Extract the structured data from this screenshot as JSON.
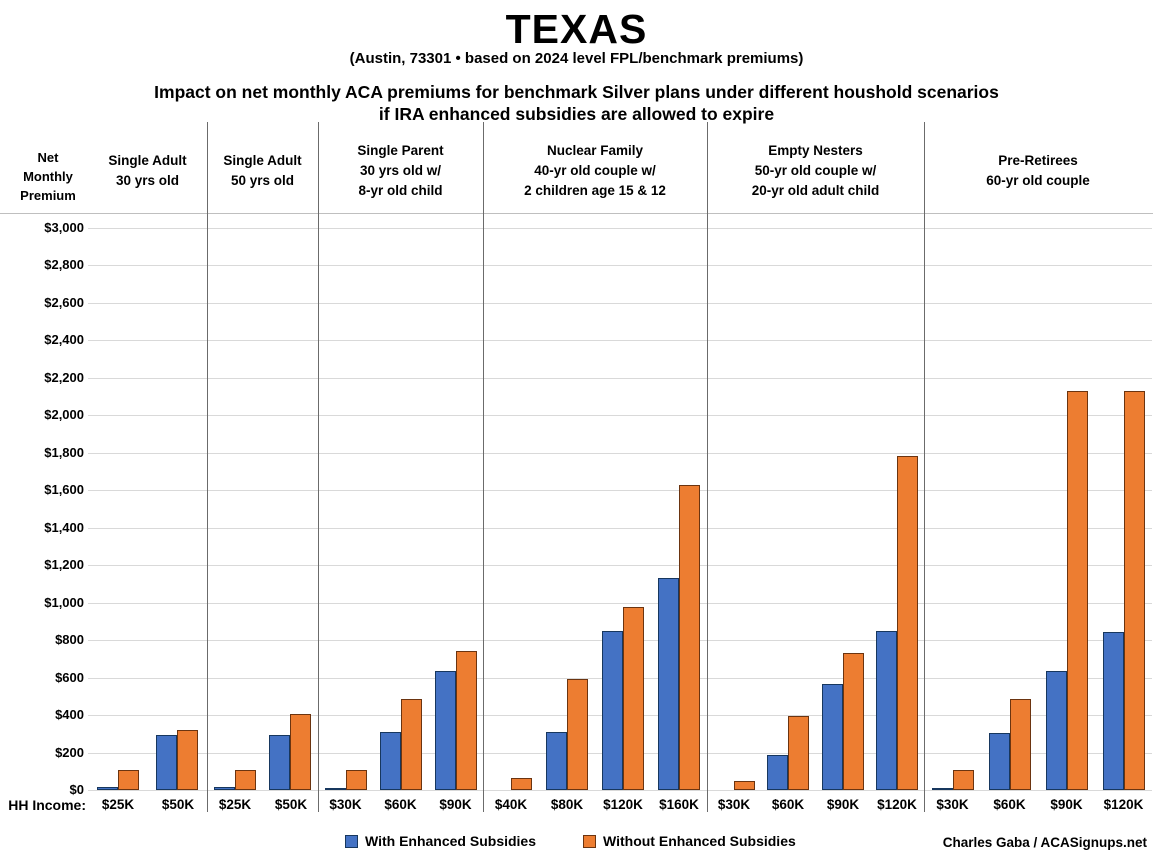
{
  "title": "TEXAS",
  "subtitle": "(Austin, 73301 • based on 2024 level FPL/benchmark premiums)",
  "heading_line1": "Impact on net monthly ACA premiums for benchmark Silver plans under different houshold scenarios",
  "heading_line2": "if IRA enhanced subsidies are allowed to expire",
  "y_axis_title_lines": [
    "Net",
    "Monthly",
    "Premium"
  ],
  "hh_income_label": "HH Income:",
  "credit": "Charles Gaba / ACASignups.net",
  "legend": [
    {
      "label": "With Enhanced Subsidies",
      "color": "#4472C4"
    },
    {
      "label": "Without Enhanced Subsidies",
      "color": "#ED7D31"
    }
  ],
  "colors": {
    "with_fill": "#4472C4",
    "with_border": "#17375E",
    "without_fill": "#ED7D31",
    "without_border": "#6B3410",
    "gridline": "#D9D9D9",
    "divider": "#6b6b6b"
  },
  "chart_data": {
    "type": "bar",
    "title": "Impact on net monthly ACA premiums for benchmark Silver plans under different houshold scenarios if IRA enhanced subsidies are allowed to expire",
    "ylabel": "Net Monthly Premium",
    "xlabel": "HH Income",
    "ylim": [
      0,
      3000
    ],
    "ytick_step": 200,
    "grid": true,
    "legend_position": "bottom",
    "series_names": [
      "With Enhanced Subsidies",
      "Without Enhanced Subsidies"
    ],
    "groups": [
      {
        "label": [
          "Single Adult",
          "30 yrs old"
        ],
        "categories": [
          "$25K",
          "$50K"
        ],
        "with": [
          18,
          295
        ],
        "without": [
          105,
          322
        ]
      },
      {
        "label": [
          "Single Adult",
          "50 yrs old"
        ],
        "categories": [
          "$25K",
          "$50K"
        ],
        "with": [
          18,
          295
        ],
        "without": [
          105,
          405
        ]
      },
      {
        "label": [
          "Single Parent",
          "30 yrs old w/",
          "8-yr old child"
        ],
        "categories": [
          "$30K",
          "$60K",
          "$90K"
        ],
        "with": [
          8,
          307,
          635
        ],
        "without": [
          105,
          485,
          742
        ]
      },
      {
        "label": [
          "Nuclear Family",
          "40-yr old couple w/",
          "2 children age 15 & 12"
        ],
        "categories": [
          "$40K",
          "$80K",
          "$120K",
          "$160K"
        ],
        "with": [
          0,
          310,
          850,
          1133
        ],
        "without": [
          66,
          590,
          978,
          1630
        ]
      },
      {
        "label": [
          "Empty Nesters",
          "50-yr old couple w/",
          "20-yr old adult child"
        ],
        "categories": [
          "$30K",
          "$60K",
          "$90K",
          "$120K"
        ],
        "with": [
          0,
          185,
          568,
          848
        ],
        "without": [
          50,
          395,
          732,
          1785
        ]
      },
      {
        "label": [
          "Pre-Retirees",
          "60-yr old couple"
        ],
        "categories": [
          "$30K",
          "$60K",
          "$90K",
          "$120K"
        ],
        "with": [
          10,
          305,
          635,
          845
        ],
        "without": [
          105,
          487,
          2130,
          2130
        ]
      }
    ]
  }
}
